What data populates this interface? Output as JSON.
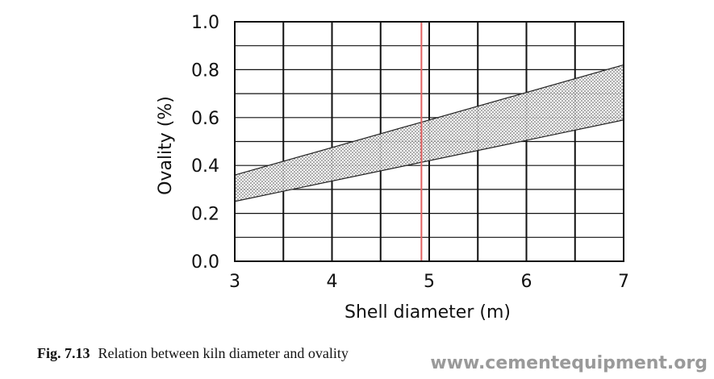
{
  "chart_data": {
    "type": "area",
    "xlabel": "Shell diameter (m)",
    "ylabel": "Ovality (%)",
    "xlim": [
      3,
      7
    ],
    "ylim": [
      0,
      1.0
    ],
    "x_ticks": [
      "3",
      "4",
      "5",
      "6",
      "7"
    ],
    "y_ticks": [
      "0.0",
      "0.2",
      "0.4",
      "0.6",
      "0.8",
      "1.0"
    ],
    "grid": true,
    "band": {
      "x": [
        3,
        7
      ],
      "upper": [
        0.36,
        0.82
      ],
      "lower": [
        0.25,
        0.59
      ]
    },
    "reference_line_x": 4.92,
    "colors": {
      "reference_line": "#e06060",
      "band_fill": "#dddddd",
      "grid": "#111111"
    }
  },
  "caption": {
    "label": "Fig. 7.13",
    "text": "Relation between kiln diameter and ovality"
  },
  "watermark": "www.cementequipment.org"
}
